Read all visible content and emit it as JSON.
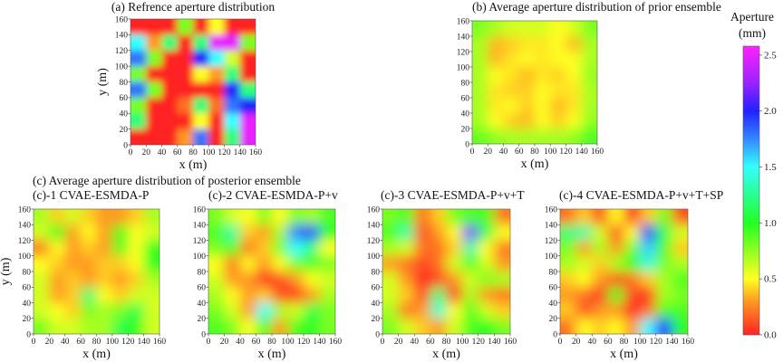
{
  "figure": {
    "section_c_title": "(c) Average aperture distribution of posterior ensemble"
  },
  "chart_data": [
    {
      "type": "heatmap",
      "id": "a",
      "title": "(a) Refrence aperture distribution",
      "xlabel": "x (m)",
      "ylabel": "y (m)",
      "xlim": [
        0,
        160
      ],
      "ylim": [
        0,
        160
      ],
      "xticks": [
        0,
        20,
        40,
        60,
        80,
        100,
        120,
        140,
        160
      ],
      "yticks": [
        0,
        20,
        40,
        60,
        80,
        100,
        120,
        140,
        160
      ],
      "grid_rows_top_to_bottom": [
        [
          0,
          0,
          0,
          0.8,
          0,
          0.5,
          0,
          0
        ],
        [
          1.5,
          0.3,
          1.2,
          0,
          1.2,
          2.5,
          2.5,
          0.8
        ],
        [
          1.8,
          0.8,
          0,
          0,
          2.0,
          1.5,
          0.6,
          0
        ],
        [
          0.8,
          0,
          0,
          0,
          0.5,
          0.3,
          1.2,
          0
        ],
        [
          1.8,
          0.8,
          0,
          0,
          0,
          0,
          2.0,
          1.2
        ],
        [
          0.8,
          0,
          0,
          0.2,
          1.2,
          0.2,
          1.8,
          2.0
        ],
        [
          1.2,
          0,
          0,
          0,
          0.5,
          0,
          1.5,
          2.5
        ],
        [
          0,
          0,
          0,
          0.3,
          1.8,
          0,
          1.2,
          2.5
        ]
      ]
    },
    {
      "type": "heatmap",
      "id": "b",
      "title": "(b) Average aperture distribution of prior ensemble",
      "xlabel": "x (m)",
      "ylabel": "",
      "xlim": [
        0,
        160
      ],
      "ylim": [
        0,
        160
      ],
      "xticks": [
        0,
        20,
        40,
        60,
        80,
        100,
        120,
        140,
        160
      ],
      "yticks": [
        0,
        20,
        40,
        60,
        80,
        100,
        120,
        140,
        160
      ],
      "grid_rows_top_to_bottom": [
        [
          0.8,
          0.7,
          0.6,
          0.6,
          0.6,
          0.5,
          0.6,
          0.8
        ],
        [
          0.7,
          0.35,
          0.4,
          0.45,
          0.45,
          0.5,
          0.35,
          0.7
        ],
        [
          0.7,
          0.35,
          0.45,
          0.5,
          0.45,
          0.5,
          0.5,
          0.7
        ],
        [
          0.7,
          0.5,
          0.45,
          0.35,
          0.45,
          0.4,
          0.5,
          0.75
        ],
        [
          0.7,
          0.45,
          0.4,
          0.4,
          0.5,
          0.45,
          0.45,
          0.7
        ],
        [
          0.7,
          0.45,
          0.5,
          0.4,
          0.5,
          0.35,
          0.45,
          0.7
        ],
        [
          0.7,
          0.5,
          0.4,
          0.35,
          0.5,
          0.4,
          0.5,
          0.75
        ],
        [
          0.85,
          0.75,
          0.7,
          0.7,
          0.7,
          0.7,
          0.75,
          0.9
        ]
      ]
    },
    {
      "type": "heatmap",
      "id": "c1",
      "title": "(c)-1 CVAE-ESMDA-P",
      "xlabel": "x (m)",
      "ylabel": "y (m)",
      "xlim": [
        0,
        160
      ],
      "ylim": [
        0,
        160
      ],
      "xticks": [
        0,
        20,
        40,
        60,
        80,
        100,
        120,
        140,
        160
      ],
      "yticks": [
        0,
        20,
        40,
        60,
        80,
        100,
        120,
        140,
        160
      ],
      "grid_rows_top_to_bottom": [
        [
          0.7,
          0.4,
          0.6,
          0.4,
          0.3,
          0.3,
          0.4,
          0.7
        ],
        [
          0.6,
          1.0,
          0.3,
          0.5,
          0.3,
          1.0,
          0.5,
          0.6
        ],
        [
          0.2,
          0.5,
          0.3,
          0.4,
          0.3,
          0.9,
          0.5,
          1.0
        ],
        [
          0.5,
          0.4,
          0.3,
          0.3,
          0.4,
          0.4,
          0.5,
          1.0
        ],
        [
          0.6,
          0.3,
          0.4,
          0.3,
          0.4,
          0.3,
          0.4,
          0.7
        ],
        [
          0.6,
          0.3,
          0.4,
          1.2,
          0.5,
          0.4,
          0.6,
          0.6
        ],
        [
          0.6,
          0.5,
          0.4,
          0.8,
          0.7,
          0.8,
          1.1,
          0.6
        ],
        [
          0.8,
          0.6,
          0.6,
          0.7,
          0.7,
          1.1,
          1.0,
          0.6
        ]
      ]
    },
    {
      "type": "heatmap",
      "id": "c2",
      "title": "(c)-2 CVAE-ESMDA-P+v",
      "xlabel": "x (m)",
      "ylabel": "",
      "xlim": [
        0,
        160
      ],
      "ylim": [
        0,
        160
      ],
      "xticks": [
        0,
        20,
        40,
        60,
        80,
        100,
        120,
        140,
        160
      ],
      "yticks": [
        0,
        20,
        40,
        60,
        80,
        100,
        120,
        140,
        160
      ],
      "grid_rows_top_to_bottom": [
        [
          0.8,
          0.6,
          0.5,
          0.8,
          0.5,
          0.8,
          0.7,
          0.9
        ],
        [
          0.9,
          1.3,
          0.4,
          0.3,
          0.7,
          1.8,
          2.0,
          1.0
        ],
        [
          0.8,
          0.9,
          0.2,
          0.4,
          0.8,
          1.5,
          1.2,
          0.5
        ],
        [
          0.5,
          0.2,
          0.5,
          0.3,
          0.5,
          0.8,
          0.9,
          0.8
        ],
        [
          0.6,
          0.3,
          0.3,
          0.0,
          0.1,
          0.3,
          0.5,
          0.6
        ],
        [
          0.7,
          0.5,
          0.3,
          0.4,
          0.1,
          0.0,
          0.3,
          0.7
        ],
        [
          0.8,
          0.6,
          0.3,
          1.5,
          0.7,
          0.6,
          1.1,
          0.8
        ],
        [
          0.9,
          0.8,
          0.5,
          0.9,
          0.3,
          0.9,
          1.0,
          0.8
        ]
      ]
    },
    {
      "type": "heatmap",
      "id": "c3",
      "title": "(c)-3 CVAE-ESMDA-P+v+T",
      "xlabel": "x (m)",
      "ylabel": "",
      "xlim": [
        0,
        160
      ],
      "ylim": [
        0,
        160
      ],
      "xticks": [
        0,
        20,
        40,
        60,
        80,
        100,
        120,
        140,
        160
      ],
      "yticks": [
        0,
        20,
        40,
        60,
        80,
        100,
        120,
        140,
        160
      ],
      "grid_rows_top_to_bottom": [
        [
          0.8,
          0.9,
          0.2,
          0.4,
          0.8,
          0.9,
          0.9,
          0.2
        ],
        [
          0.9,
          1.3,
          0.1,
          0.3,
          0.5,
          2.2,
          1.1,
          0.5
        ],
        [
          0.7,
          0.6,
          0.2,
          0.2,
          0.4,
          1.3,
          0.5,
          0.2
        ],
        [
          0.3,
          0.2,
          0.1,
          0.2,
          0.6,
          0.9,
          0.6,
          0.3
        ],
        [
          0.6,
          0.3,
          0.0,
          0.1,
          0.3,
          0.6,
          0.8,
          0.7
        ],
        [
          0.6,
          0.4,
          0.1,
          1.2,
          0.0,
          0.7,
          0.3,
          0.2
        ],
        [
          0.7,
          0.2,
          0.3,
          1.4,
          0.5,
          0.9,
          0.6,
          0.4
        ],
        [
          0.8,
          0.6,
          0.4,
          0.3,
          0.6,
          0.9,
          1.0,
          0.8
        ]
      ]
    },
    {
      "type": "heatmap",
      "id": "c4",
      "title": "(c)-4 CVAE-ESMDA-P+v+T+SP",
      "xlabel": "x (m)",
      "ylabel": "",
      "xlim": [
        0,
        160
      ],
      "ylim": [
        0,
        160
      ],
      "xticks": [
        0,
        20,
        40,
        60,
        80,
        100,
        120,
        140,
        160
      ],
      "yticks": [
        0,
        20,
        40,
        60,
        80,
        100,
        120,
        140,
        160
      ],
      "grid_rows_top_to_bottom": [
        [
          0.2,
          0.4,
          0.1,
          0.5,
          0.0,
          0.4,
          0.8,
          0.1
        ],
        [
          1.2,
          1.3,
          0.6,
          0.1,
          0.5,
          2.0,
          1.1,
          0.6
        ],
        [
          0.8,
          0.3,
          0.7,
          0.3,
          0.8,
          1.6,
          0.9,
          0.4
        ],
        [
          0.7,
          0.6,
          0.4,
          0.7,
          1.0,
          1.4,
          0.8,
          0.7
        ],
        [
          0.4,
          0.5,
          0.3,
          0.1,
          0.2,
          0.4,
          0.7,
          0.9
        ],
        [
          0.3,
          0.2,
          0.0,
          1.0,
          0.1,
          0.0,
          0.7,
          0.8
        ],
        [
          0.4,
          0.1,
          0.3,
          0.3,
          0.0,
          0.2,
          0.9,
          0.9
        ],
        [
          0.2,
          0.5,
          0.4,
          0.5,
          0.3,
          1.5,
          2.0,
          1.0
        ]
      ]
    }
  ],
  "colorbar": {
    "label_line1": "Aperture",
    "label_line2": "(mm)",
    "range": [
      0,
      2.58
    ],
    "ticks": [
      "0.0",
      "0.5",
      "1.0",
      "1.5",
      "2.0",
      "2.5"
    ],
    "colormap": [
      {
        "v": 0.0,
        "c": "#ff2222"
      },
      {
        "v": 0.3,
        "c": "#ff9922"
      },
      {
        "v": 0.5,
        "c": "#ffff22"
      },
      {
        "v": 1.0,
        "c": "#22ff22"
      },
      {
        "v": 1.5,
        "c": "#33ffff"
      },
      {
        "v": 1.75,
        "c": "#3388ff"
      },
      {
        "v": 2.0,
        "c": "#2222ff"
      },
      {
        "v": 2.25,
        "c": "#9922ff"
      },
      {
        "v": 2.58,
        "c": "#ff22ff"
      }
    ]
  }
}
